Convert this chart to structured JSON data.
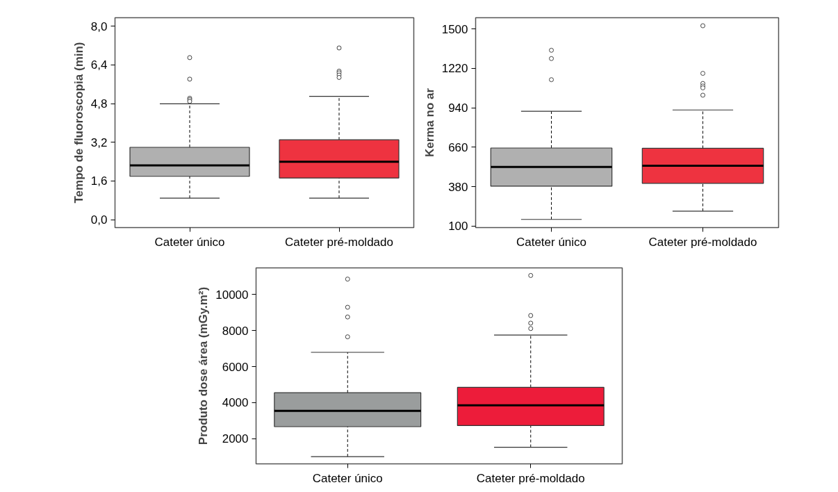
{
  "chart_data": [
    {
      "type": "box",
      "ylabel": "Tempo de fluoroscopia (min)",
      "categories": [
        "Cateter único",
        "Cateter pré-moldado"
      ],
      "colors": [
        "#b0b0b0",
        "#ee3340"
      ],
      "boxes": [
        {
          "low": 0.89,
          "q1": 1.79,
          "median": 2.24,
          "q3": 2.99,
          "high": 4.79,
          "outliers": [
            6.7,
            5.81,
            5.02,
            4.96,
            4.89
          ]
        },
        {
          "low": 0.89,
          "q1": 1.72,
          "median": 2.39,
          "q3": 3.3,
          "high": 5.1,
          "outliers": [
            7.1,
            6.14,
            6.07,
            5.98,
            5.88
          ]
        }
      ],
      "ylim": [
        -0.33,
        8.35
      ],
      "yticks": [
        {
          "value": 0,
          "label": "0,0"
        },
        {
          "value": 1.6,
          "label": "1,6"
        },
        {
          "value": 3.2,
          "label": "3,2"
        },
        {
          "value": 4.8,
          "label": "4,8"
        },
        {
          "value": 6.4,
          "label": "6,4"
        },
        {
          "value": 8.0,
          "label": "8,0"
        }
      ],
      "grid": false
    },
    {
      "type": "box",
      "ylabel": "Kerma no ar",
      "categories": [
        "Cateter único",
        "Cateter pré-moldado"
      ],
      "colors": [
        "#b0b0b0",
        "#ee3340"
      ],
      "boxes": [
        {
          "low": 147,
          "q1": 383,
          "median": 519,
          "q3": 654,
          "high": 915,
          "outliers": [
            1348,
            1289,
            1139
          ]
        },
        {
          "low": 206,
          "q1": 403,
          "median": 528,
          "q3": 652,
          "high": 924,
          "outliers": [
            1522,
            1184,
            1112,
            1094,
            1081,
            1029
          ]
        }
      ],
      "ylim": [
        89,
        1579
      ],
      "yticks": [
        100,
        380,
        660,
        940,
        1220,
        1500
      ],
      "grid": false
    },
    {
      "type": "box",
      "ylabel": "Produto dose área (mGy.m²)",
      "categories": [
        "Cateter único",
        "Cateter pré-moldado"
      ],
      "colors": [
        "#9a9d9d",
        "#ed1c3a"
      ],
      "boxes": [
        {
          "low": 997,
          "q1": 2662,
          "median": 3544,
          "q3": 4546,
          "high": 6792,
          "outliers": [
            10862,
            9298,
            8757,
            7654
          ]
        },
        {
          "low": 1519,
          "q1": 2722,
          "median": 3845,
          "q3": 4847,
          "high": 7754,
          "outliers": [
            11063,
            8837,
            8416,
            8115
          ]
        }
      ],
      "ylim": [
        596,
        11484
      ],
      "yticks": [
        2000,
        4000,
        6000,
        8000,
        10000
      ],
      "grid": false
    }
  ]
}
